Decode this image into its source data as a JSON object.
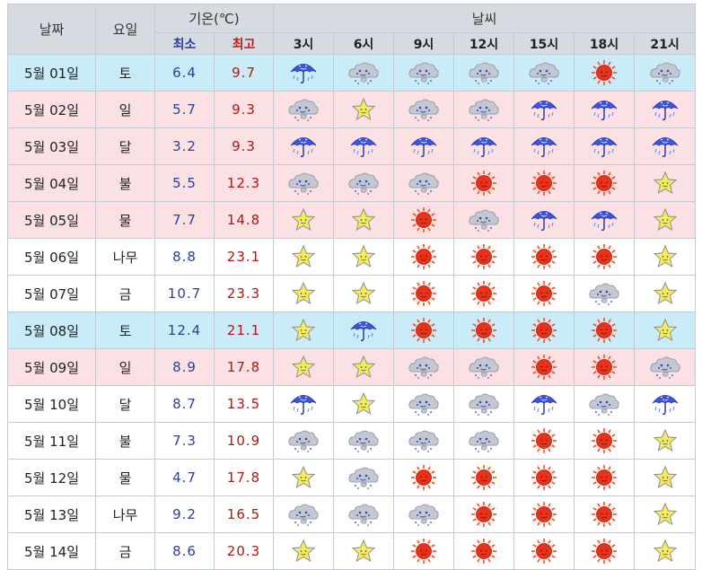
{
  "header": {
    "date": "날짜",
    "day": "요일",
    "temp": "기온(℃)",
    "weather": "날씨",
    "min": "최소",
    "max": "최고",
    "hours": [
      "3시",
      "6시",
      "9시",
      "12시",
      "15시",
      "18시",
      "21시"
    ]
  },
  "colors": {
    "blue_row": "#c9ecf8",
    "pink_row": "#fbe1e4",
    "header_bg": "#d6dbe2",
    "min_text": "#2a3f9a",
    "max_text": "#b51515"
  },
  "rows": [
    {
      "date": "5월 01일",
      "day": "토",
      "min": "6.4",
      "max": "9.7",
      "bg": "blue",
      "icons": [
        "rain-icon",
        "cloud-icon",
        "cloud-icon",
        "cloud-icon",
        "cloud-icon",
        "sun-icon",
        "cloud-icon"
      ]
    },
    {
      "date": "5월 02일",
      "day": "일",
      "min": "5.7",
      "max": "9.3",
      "bg": "pink",
      "icons": [
        "cloud-icon",
        "star-icon",
        "cloud-icon",
        "cloud-icon",
        "rain-icon",
        "rain-icon",
        "rain-icon"
      ]
    },
    {
      "date": "5월 03일",
      "day": "달",
      "min": "3.2",
      "max": "9.3",
      "bg": "pink",
      "icons": [
        "rain-icon",
        "rain-icon",
        "rain-icon",
        "rain-icon",
        "rain-icon",
        "rain-icon",
        "rain-icon"
      ]
    },
    {
      "date": "5월 04일",
      "day": "불",
      "min": "5.5",
      "max": "12.3",
      "bg": "pink",
      "icons": [
        "cloud-icon",
        "cloud-icon",
        "cloud-icon",
        "sun-icon",
        "sun-icon",
        "sun-icon",
        "star-icon"
      ]
    },
    {
      "date": "5월 05일",
      "day": "물",
      "min": "7.7",
      "max": "14.8",
      "bg": "pink",
      "icons": [
        "star-icon",
        "star-icon",
        "sun-icon",
        "cloud-icon",
        "rain-icon",
        "rain-icon",
        "star-icon"
      ]
    },
    {
      "date": "5월 06일",
      "day": "나무",
      "min": "8.8",
      "max": "23.1",
      "bg": "white",
      "icons": [
        "star-icon",
        "star-icon",
        "sun-icon",
        "sun-icon",
        "sun-icon",
        "sun-icon",
        "star-icon"
      ]
    },
    {
      "date": "5월 07일",
      "day": "금",
      "min": "10.7",
      "max": "23.3",
      "bg": "white",
      "icons": [
        "star-icon",
        "star-icon",
        "sun-icon",
        "sun-icon",
        "sun-icon",
        "cloud-icon",
        "star-icon"
      ]
    },
    {
      "date": "5월 08일",
      "day": "토",
      "min": "12.4",
      "max": "21.1",
      "bg": "blue",
      "icons": [
        "star-icon",
        "rain-icon",
        "sun-icon",
        "sun-icon",
        "sun-icon",
        "sun-icon",
        "star-icon"
      ]
    },
    {
      "date": "5월 09일",
      "day": "일",
      "min": "8.9",
      "max": "17.8",
      "bg": "pink",
      "icons": [
        "star-icon",
        "star-icon",
        "cloud-icon",
        "cloud-icon",
        "sun-icon",
        "sun-icon",
        "cloud-icon"
      ]
    },
    {
      "date": "5월 10일",
      "day": "달",
      "min": "8.7",
      "max": "13.5",
      "bg": "white",
      "icons": [
        "rain-icon",
        "star-icon",
        "cloud-icon",
        "cloud-icon",
        "rain-icon",
        "cloud-icon",
        "rain-icon"
      ]
    },
    {
      "date": "5월 11일",
      "day": "불",
      "min": "7.3",
      "max": "10.9",
      "bg": "white",
      "icons": [
        "cloud-icon",
        "cloud-icon",
        "cloud-icon",
        "cloud-icon",
        "sun-icon",
        "sun-icon",
        "star-icon"
      ]
    },
    {
      "date": "5월 12일",
      "day": "물",
      "min": "4.7",
      "max": "17.8",
      "bg": "white",
      "icons": [
        "star-icon",
        "cloud-icon",
        "sun-icon",
        "sun-icon",
        "sun-icon",
        "sun-icon",
        "star-icon"
      ]
    },
    {
      "date": "5월 13일",
      "day": "나무",
      "min": "9.2",
      "max": "16.5",
      "bg": "white",
      "icons": [
        "cloud-icon",
        "cloud-icon",
        "cloud-icon",
        "sun-icon",
        "sun-icon",
        "sun-icon",
        "star-icon"
      ]
    },
    {
      "date": "5월 14일",
      "day": "금",
      "min": "8.6",
      "max": "20.3",
      "bg": "white",
      "icons": [
        "star-icon",
        "star-icon",
        "sun-icon",
        "sun-icon",
        "sun-icon",
        "sun-icon",
        "star-icon"
      ]
    }
  ]
}
